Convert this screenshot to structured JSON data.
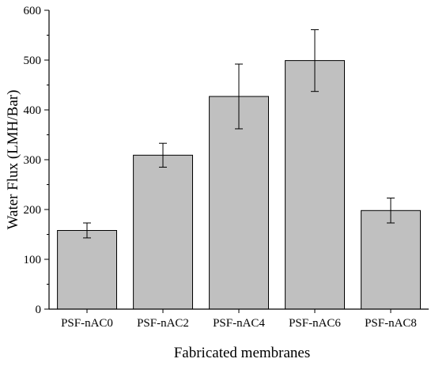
{
  "chart_data": {
    "type": "bar",
    "categories": [
      "PSF-nAC0",
      "PSF-nAC2",
      "PSF-nAC4",
      "PSF-nAC6",
      "PSF-nAC8"
    ],
    "values": [
      158,
      309,
      427,
      499,
      198
    ],
    "error_bars": [
      15,
      24,
      65,
      62,
      25
    ],
    "xlabel": "Fabricated membranes",
    "ylabel": "Water Flux (LMH/Bar)",
    "ylim": [
      0,
      600
    ],
    "yticks": [
      0,
      100,
      200,
      300,
      400,
      500,
      600
    ],
    "grid": false,
    "legend": "none",
    "bar_color": "#c0c0c0",
    "bar_edge_color": "#000000"
  }
}
